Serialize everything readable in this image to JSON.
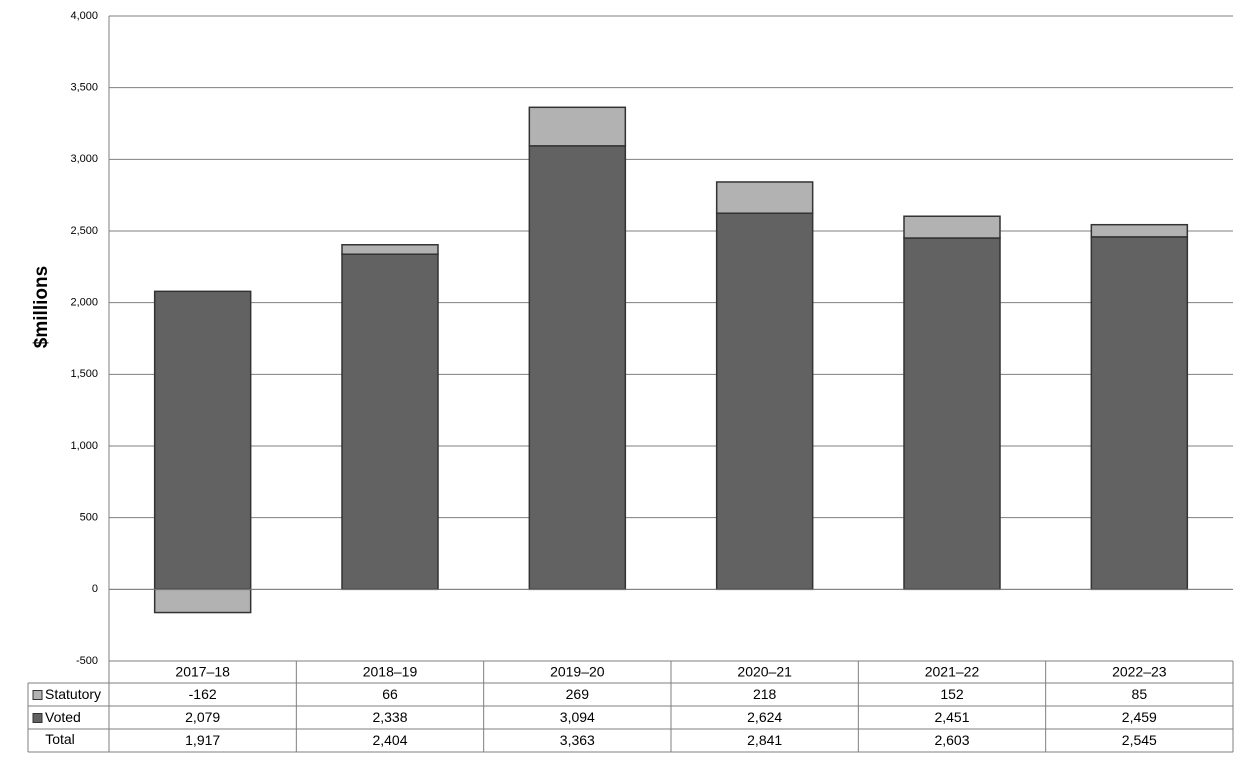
{
  "chart_data": {
    "type": "stacked-bar",
    "y_label": "$millions",
    "categories": [
      "2017–18",
      "2018–19",
      "2019–20",
      "2020–21",
      "2021–22",
      "2022–23"
    ],
    "series": [
      {
        "name": "Voted",
        "color": "#626262",
        "values": [
          2079,
          2338,
          3094,
          2624,
          2451,
          2459
        ],
        "value_labels": [
          "2,079",
          "2,338",
          "3,094",
          "2,624",
          "2,451",
          "2,459"
        ]
      },
      {
        "name": "Statutory",
        "color": "#b2b2b2",
        "values": [
          -162,
          66,
          269,
          218,
          152,
          85
        ]
      }
    ],
    "totals": {
      "name": "Total",
      "values": [
        1917,
        2404,
        3363,
        2841,
        2603,
        2545
      ],
      "value_labels": [
        "1,917",
        "2,404",
        "3,363",
        "2,841",
        "2,603",
        "2,545"
      ]
    },
    "ylim": [
      -500,
      4000
    ],
    "yticks": [
      -500,
      0,
      500,
      {
        "value": 1000,
        "label": "1,000"
      },
      {
        "value": 1500,
        "label": "1,500"
      },
      {
        "value": 2000,
        "label": "2,000"
      },
      {
        "value": 2500,
        "label": "2,500"
      },
      {
        "value": 3000,
        "label": "3,000"
      },
      {
        "value": 3500,
        "label": "3,500"
      },
      {
        "value": 4000,
        "label": "4,000"
      }
    ],
    "grid": true
  }
}
